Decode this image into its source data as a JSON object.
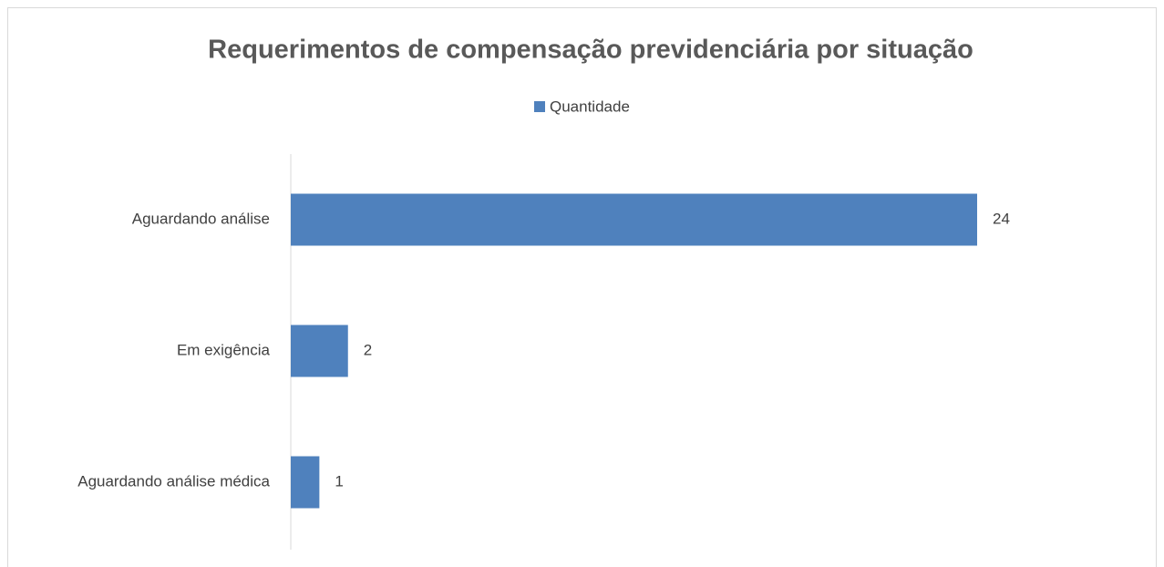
{
  "chart_data": {
    "type": "bar",
    "orientation": "horizontal",
    "title": "Requerimentos de compensação previdenciária por situação",
    "categories": [
      "Aguardando análise",
      "Em exigência",
      "Aguardando análise médica"
    ],
    "series": [
      {
        "name": "Quantidade",
        "color": "#4f81bd",
        "values": [
          24,
          2,
          1
        ]
      }
    ],
    "legend": "top"
  }
}
